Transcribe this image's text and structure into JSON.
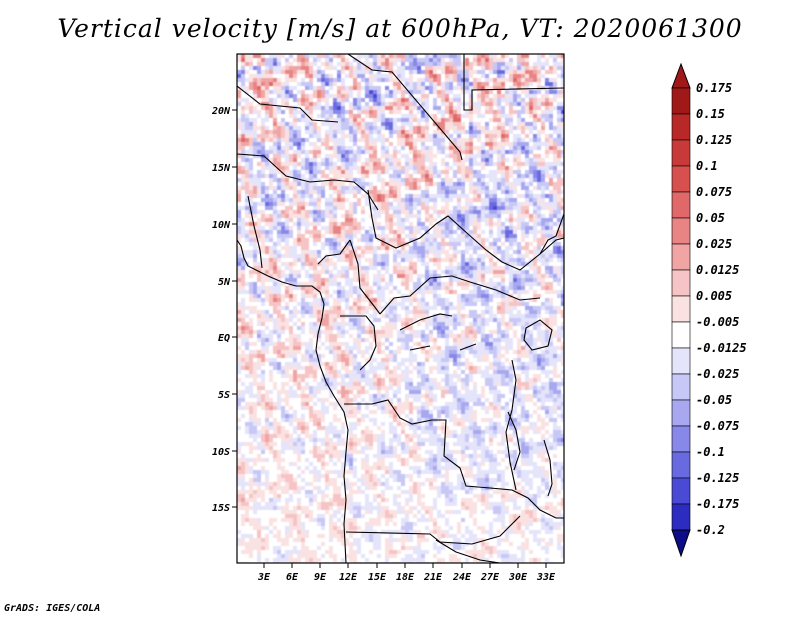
{
  "title": "Vertical velocity [m/s] at 600hPa, VT: 2020061300",
  "credit": "GrADS: IGES/COLA",
  "map": {
    "lat_labels": [
      "20N",
      "15N",
      "10N",
      "5N",
      "EQ",
      "5S",
      "10S",
      "15S"
    ],
    "lon_labels": [
      "3E",
      "6E",
      "9E",
      "12E",
      "15E",
      "18E",
      "21E",
      "24E",
      "27E",
      "30E",
      "33E"
    ]
  },
  "colorbar": {
    "labels": [
      "0.175",
      "0.15",
      "0.125",
      "0.1",
      "0.075",
      "0.05",
      "0.025",
      "0.0125",
      "0.005",
      "-0.005",
      "-0.0125",
      "-0.025",
      "-0.05",
      "-0.075",
      "-0.1",
      "-0.125",
      "-0.175",
      "-0.2"
    ],
    "colors": [
      "#a01818",
      "#b82828",
      "#c83a3a",
      "#d65050",
      "#e06868",
      "#e88484",
      "#f0a4a4",
      "#f6c4c4",
      "#fbe2e2",
      "#ffffff",
      "#e4e4fb",
      "#c8c8f6",
      "#a8a8f0",
      "#8888e8",
      "#6a6ae0",
      "#4a4ad4",
      "#2c2cc0",
      "#1a1aa8",
      "#0d0d88"
    ]
  }
}
